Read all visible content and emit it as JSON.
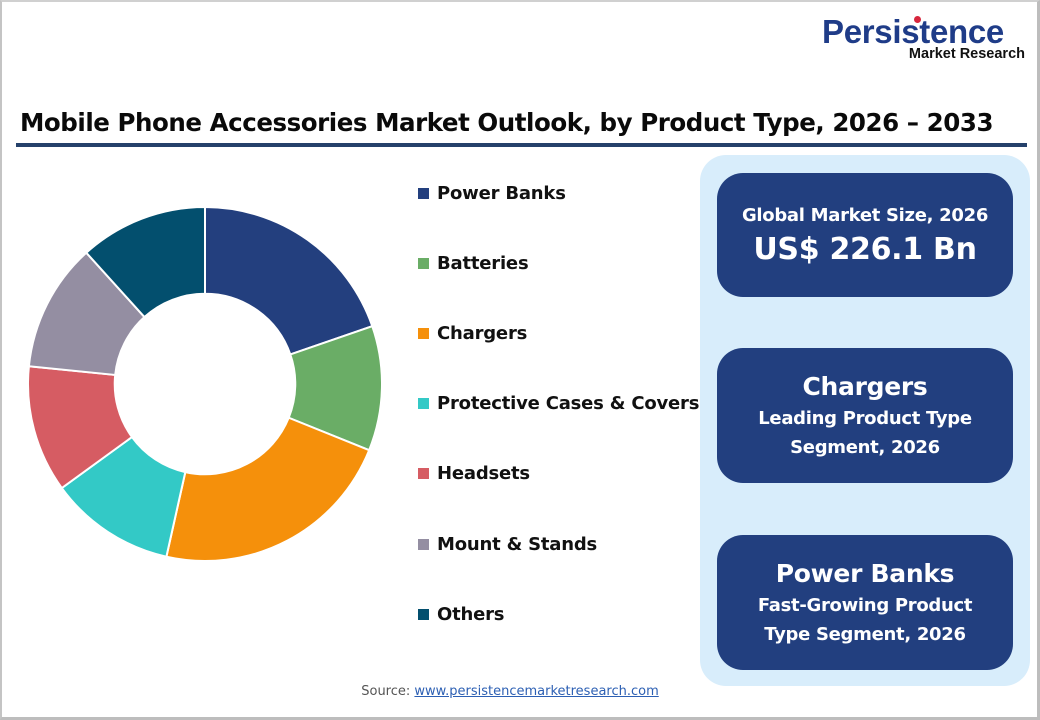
{
  "header": {
    "logo_main": "Persistence",
    "logo_sub": "Market Research",
    "title": "Mobile Phone Accessories Market Outlook, by Product Type, 2026 – 2033"
  },
  "legend": {
    "items": [
      {
        "label": "Power Banks",
        "color": "#233f7e"
      },
      {
        "label": "Batteries",
        "color": "#6aad66"
      },
      {
        "label": "Chargers",
        "color": "#f5900b"
      },
      {
        "label": "Protective Cases & Covers",
        "color": "#33c9c6"
      },
      {
        "label": "Headsets",
        "color": "#d65c63"
      },
      {
        "label": "Mount & Stands",
        "color": "#948ea2"
      },
      {
        "label": "Others",
        "color": "#034f6e"
      }
    ]
  },
  "cards": {
    "market_size": {
      "label": "Global Market Size, 2026",
      "value": "US$ 226.1 Bn"
    },
    "leading": {
      "title": "Chargers",
      "line1": "Leading Product Type",
      "line2": "Segment, 2026"
    },
    "fastest": {
      "title": "Power Banks",
      "line1": "Fast-Growing Product",
      "line2": "Type Segment, 2026"
    }
  },
  "footer": {
    "source_label": "Source:",
    "source_link": "www.persistencemarketresearch.com"
  },
  "colors": {
    "brand_navy": "#223f7f",
    "panel_bg": "#d8edfb",
    "title_rule": "#25416b"
  },
  "chart_data": {
    "type": "pie",
    "subtype": "donut",
    "title": "Mobile Phone Accessories Market Outlook, by Product Type, 2026 – 2033",
    "categories": [
      "Power Banks",
      "Batteries",
      "Chargers",
      "Protective Cases & Covers",
      "Headsets",
      "Mount & Stands",
      "Others"
    ],
    "values": [
      19.7,
      11.4,
      22.4,
      11.5,
      11.6,
      11.7,
      11.7
    ],
    "unit": "% share (estimated from slice angles)",
    "colors": [
      "#233f7e",
      "#6aad66",
      "#f5900b",
      "#33c9c6",
      "#d65c63",
      "#948ea2",
      "#034f6e"
    ],
    "start_angle": "12 o'clock, clockwise",
    "inner_radius_ratio": 0.51,
    "legend_position": "right"
  }
}
